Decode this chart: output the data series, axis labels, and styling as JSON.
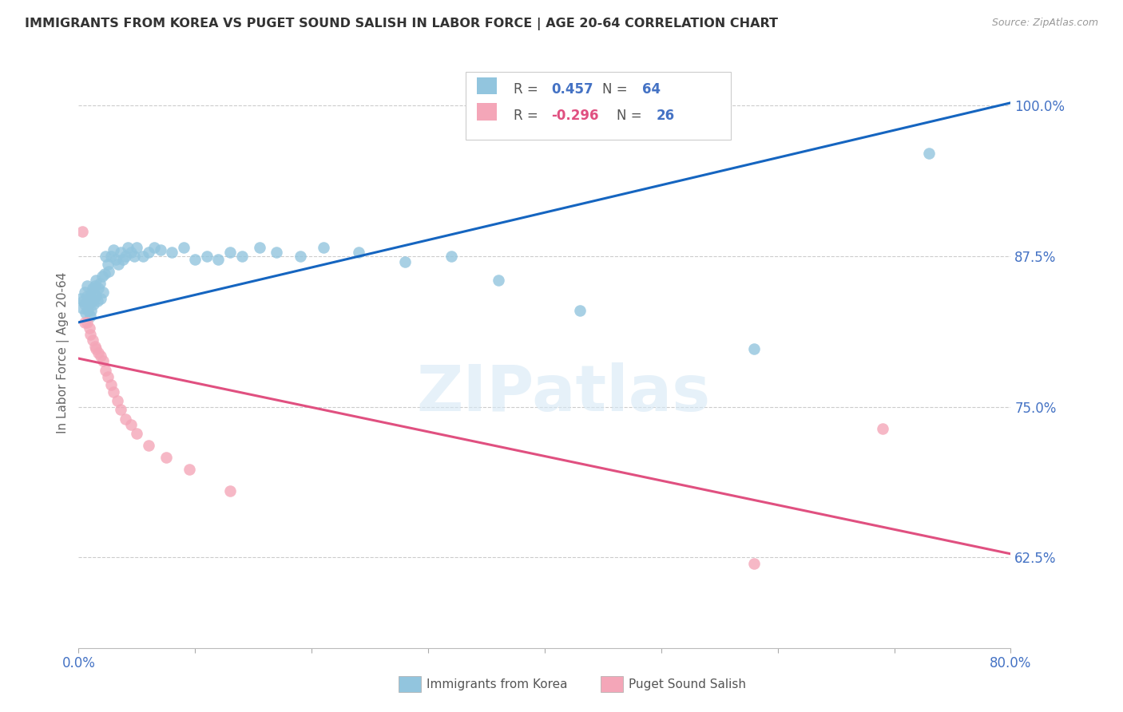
{
  "title": "IMMIGRANTS FROM KOREA VS PUGET SOUND SALISH IN LABOR FORCE | AGE 20-64 CORRELATION CHART",
  "source": "Source: ZipAtlas.com",
  "ylabel": "In Labor Force | Age 20-64",
  "xlim": [
    0.0,
    0.8
  ],
  "ylim": [
    0.55,
    1.04
  ],
  "yticks": [
    0.625,
    0.75,
    0.875,
    1.0
  ],
  "ytick_labels": [
    "62.5%",
    "75.0%",
    "87.5%",
    "100.0%"
  ],
  "xticks": [
    0.0,
    0.1,
    0.2,
    0.3,
    0.4,
    0.5,
    0.6,
    0.7,
    0.8
  ],
  "xtick_labels": [
    "0.0%",
    "",
    "",
    "",
    "",
    "",
    "",
    "",
    "80.0%"
  ],
  "legend1_r": "0.457",
  "legend1_n": "64",
  "legend2_r": "-0.296",
  "legend2_n": "26",
  "blue_color": "#92c5de",
  "pink_color": "#f4a6b8",
  "line_blue": "#1565c0",
  "line_pink": "#e05080",
  "watermark": "ZIPatlas",
  "korea_x": [
    0.002,
    0.003,
    0.004,
    0.005,
    0.005,
    0.006,
    0.007,
    0.007,
    0.008,
    0.008,
    0.009,
    0.01,
    0.01,
    0.011,
    0.012,
    0.012,
    0.013,
    0.013,
    0.014,
    0.015,
    0.015,
    0.016,
    0.017,
    0.018,
    0.019,
    0.02,
    0.021,
    0.022,
    0.023,
    0.025,
    0.026,
    0.028,
    0.03,
    0.032,
    0.034,
    0.036,
    0.038,
    0.04,
    0.042,
    0.045,
    0.048,
    0.05,
    0.055,
    0.06,
    0.065,
    0.07,
    0.08,
    0.09,
    0.1,
    0.11,
    0.12,
    0.13,
    0.14,
    0.155,
    0.17,
    0.19,
    0.21,
    0.24,
    0.28,
    0.32,
    0.36,
    0.43,
    0.58,
    0.73
  ],
  "korea_y": [
    0.84,
    0.832,
    0.838,
    0.845,
    0.835,
    0.828,
    0.842,
    0.85,
    0.838,
    0.83,
    0.836,
    0.825,
    0.842,
    0.83,
    0.848,
    0.838,
    0.845,
    0.835,
    0.85,
    0.842,
    0.855,
    0.838,
    0.848,
    0.852,
    0.84,
    0.858,
    0.845,
    0.86,
    0.875,
    0.868,
    0.862,
    0.875,
    0.88,
    0.872,
    0.868,
    0.878,
    0.872,
    0.875,
    0.882,
    0.878,
    0.875,
    0.882,
    0.875,
    0.878,
    0.882,
    0.88,
    0.878,
    0.882,
    0.872,
    0.875,
    0.872,
    0.878,
    0.875,
    0.882,
    0.878,
    0.875,
    0.882,
    0.878,
    0.87,
    0.875,
    0.855,
    0.83,
    0.798,
    0.96
  ],
  "salish_x": [
    0.003,
    0.005,
    0.007,
    0.009,
    0.01,
    0.012,
    0.014,
    0.015,
    0.017,
    0.019,
    0.021,
    0.023,
    0.025,
    0.028,
    0.03,
    0.033,
    0.036,
    0.04,
    0.045,
    0.05,
    0.06,
    0.075,
    0.095,
    0.13,
    0.58,
    0.69
  ],
  "salish_y": [
    0.895,
    0.82,
    0.82,
    0.815,
    0.81,
    0.805,
    0.8,
    0.798,
    0.795,
    0.792,
    0.788,
    0.78,
    0.775,
    0.768,
    0.762,
    0.755,
    0.748,
    0.74,
    0.735,
    0.728,
    0.718,
    0.708,
    0.698,
    0.68,
    0.62,
    0.732
  ],
  "blue_line_x0": 0.0,
  "blue_line_y0": 0.82,
  "blue_line_x1": 0.8,
  "blue_line_y1": 1.002,
  "pink_line_x0": 0.0,
  "pink_line_y0": 0.79,
  "pink_line_x1": 0.8,
  "pink_line_y1": 0.628
}
